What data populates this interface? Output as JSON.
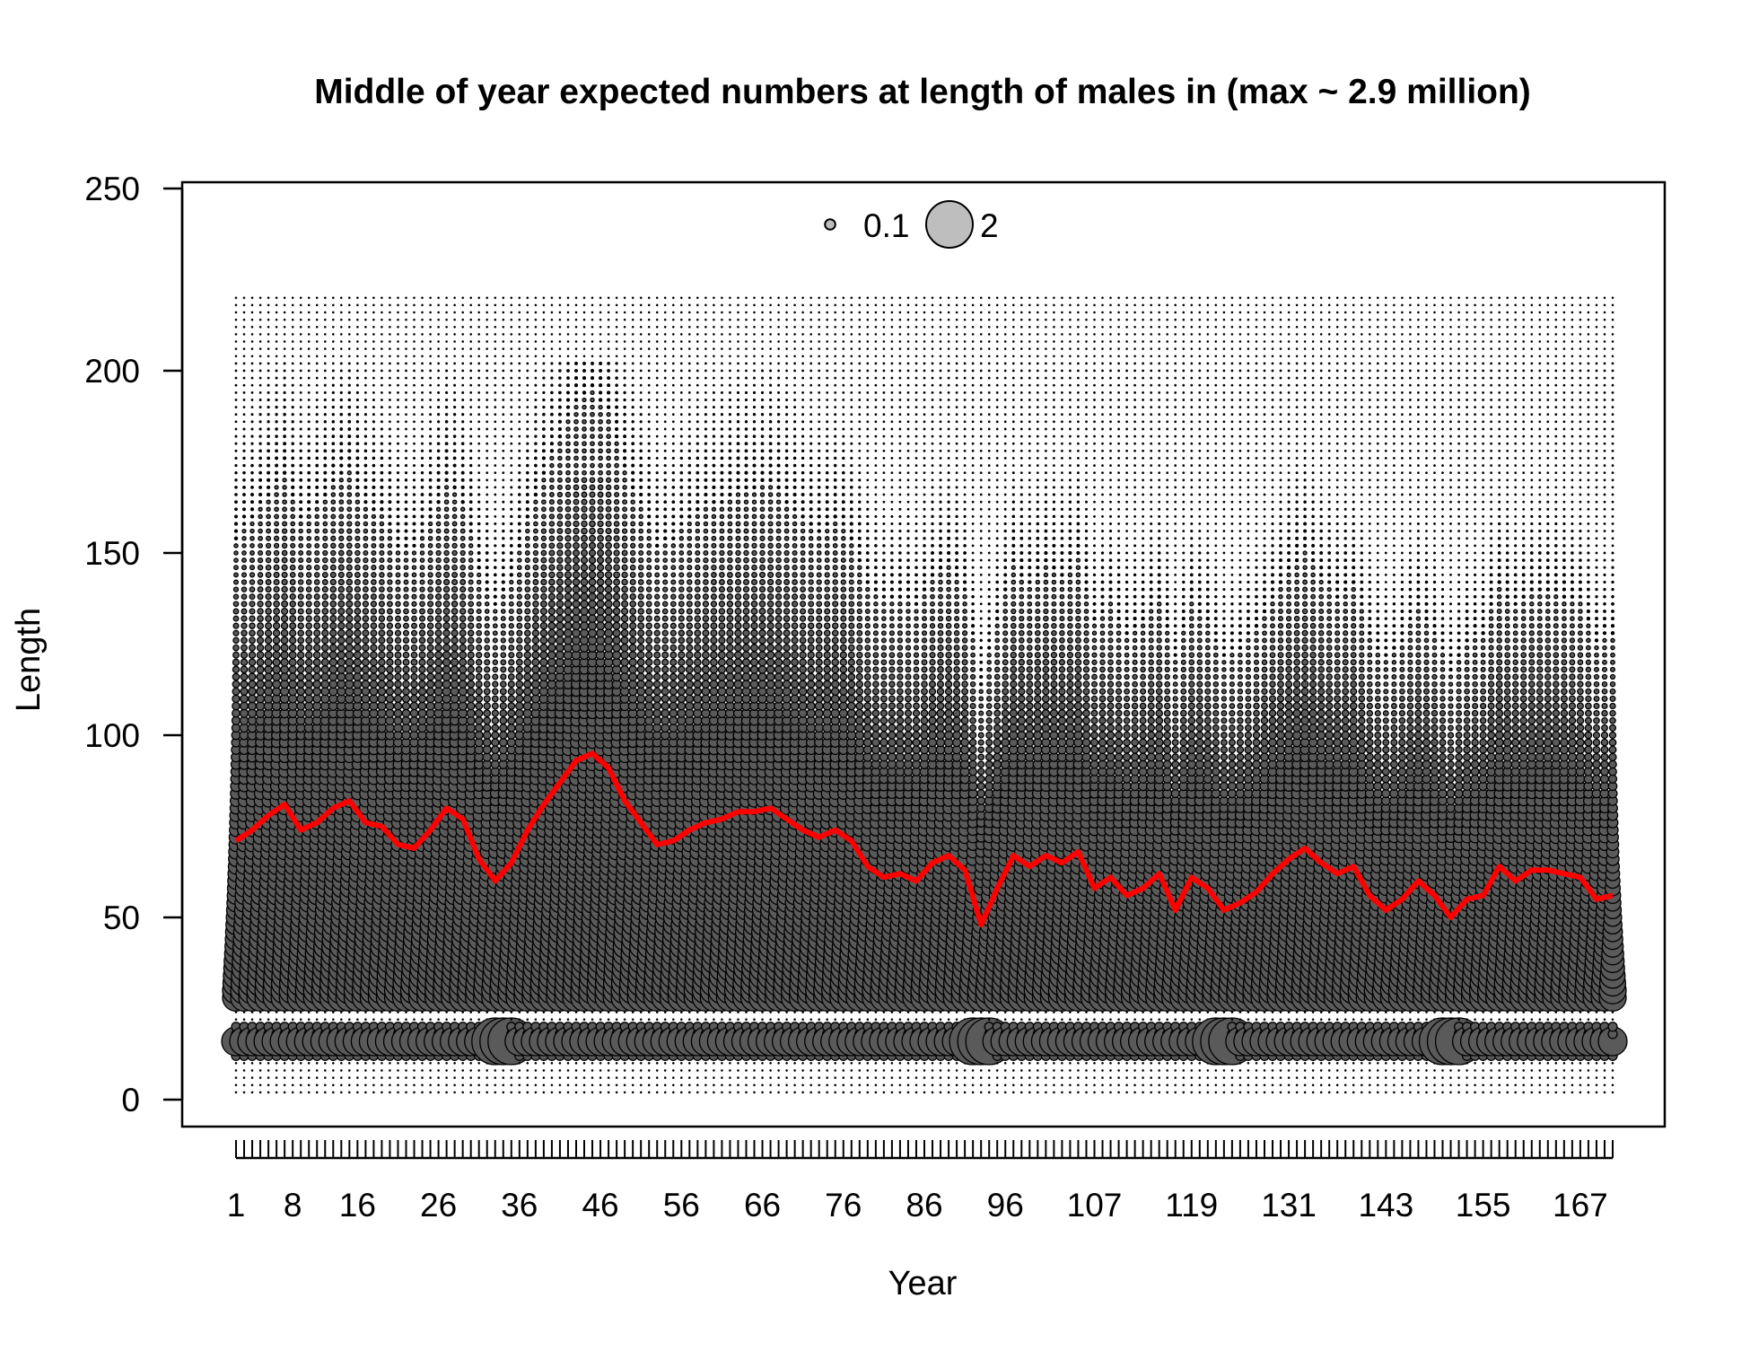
{
  "chart_data": {
    "type": "bubble",
    "title": "Middle of year expected numbers at length of males in (max ~ 2.9 million)",
    "xlabel": "Year",
    "ylabel": "Length",
    "x_range": [
      1,
      171
    ],
    "ylim": [
      -7,
      250
    ],
    "y_ticks": [
      0,
      50,
      100,
      150,
      200,
      250
    ],
    "x_ticks": [
      1,
      8,
      16,
      26,
      36,
      46,
      56,
      66,
      76,
      86,
      96,
      107,
      119,
      131,
      143,
      155,
      167
    ],
    "legend": {
      "placement": "top-center",
      "entries": [
        {
          "label": "0.1",
          "value": 0.1
        },
        {
          "label": "2",
          "value": 2
        }
      ]
    },
    "bubble_fill": "#5a5a5a",
    "legend_fill": "#bebebe",
    "line_color": "#ff0000",
    "mean_length_series": {
      "x": [
        1,
        3,
        5,
        7,
        9,
        11,
        13,
        15,
        17,
        19,
        21,
        23,
        25,
        27,
        29,
        31,
        33,
        35,
        37,
        39,
        41,
        43,
        45,
        47,
        49,
        51,
        53,
        55,
        57,
        59,
        61,
        63,
        65,
        67,
        69,
        71,
        73,
        75,
        77,
        79,
        81,
        83,
        85,
        87,
        89,
        91,
        93,
        95,
        97,
        99,
        101,
        103,
        105,
        107,
        109,
        111,
        113,
        115,
        117,
        119,
        121,
        123,
        125,
        127,
        129,
        131,
        133,
        135,
        137,
        139,
        141,
        143,
        145,
        147,
        149,
        151,
        153,
        155,
        157,
        159,
        161,
        163,
        165,
        167,
        169,
        171
      ],
      "y": [
        71,
        74,
        78,
        81,
        74,
        76,
        80,
        82,
        76,
        75,
        70,
        69,
        74,
        80,
        77,
        66,
        60,
        65,
        74,
        81,
        87,
        93,
        95,
        91,
        82,
        76,
        70,
        71,
        74,
        76,
        77,
        79,
        79,
        80,
        77,
        74,
        72,
        74,
        71,
        64,
        61,
        62,
        60,
        65,
        67,
        63,
        48,
        58,
        67,
        64,
        67,
        65,
        68,
        58,
        61,
        56,
        58,
        62,
        52,
        61,
        58,
        52,
        54,
        57,
        62,
        66,
        69,
        65,
        62,
        64,
        56,
        52,
        55,
        60,
        56,
        50,
        55,
        56,
        64,
        60,
        63,
        63,
        62,
        61,
        55,
        56
      ]
    }
  }
}
